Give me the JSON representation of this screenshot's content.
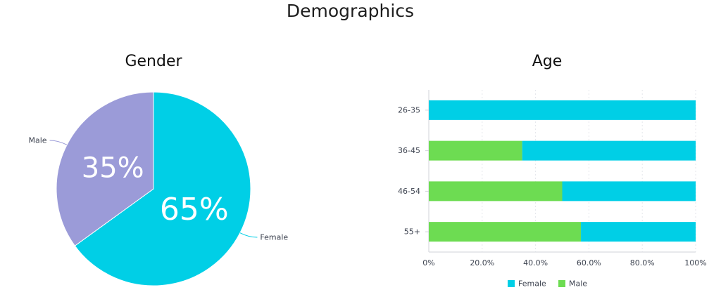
{
  "page": {
    "title": "Demographics"
  },
  "colors": {
    "female": "#00cfe6",
    "male": "#6ddc52",
    "pie_male": "#9b9bd8"
  },
  "chart_data": [
    {
      "type": "pie",
      "title": "Gender",
      "slices": [
        {
          "label": "Female",
          "value": 65,
          "display": "65%"
        },
        {
          "label": "Male",
          "value": 35,
          "display": "35%"
        }
      ]
    },
    {
      "type": "bar",
      "orientation": "horizontal",
      "stacked": true,
      "title": "Age",
      "categories": [
        "26-35",
        "36-45",
        "46-54",
        "55+"
      ],
      "series": [
        {
          "name": "Male",
          "values": [
            0,
            35,
            50,
            57
          ]
        },
        {
          "name": "Female",
          "values": [
            100,
            65,
            50,
            43
          ]
        }
      ],
      "xlim": [
        0,
        100
      ],
      "x_ticks": [
        "0%",
        "20.0%",
        "40.0%",
        "60.0%",
        "80.0%",
        "100%"
      ],
      "grid": true,
      "legend": {
        "position": "bottom",
        "entries": [
          "Female",
          "Male"
        ]
      }
    }
  ]
}
